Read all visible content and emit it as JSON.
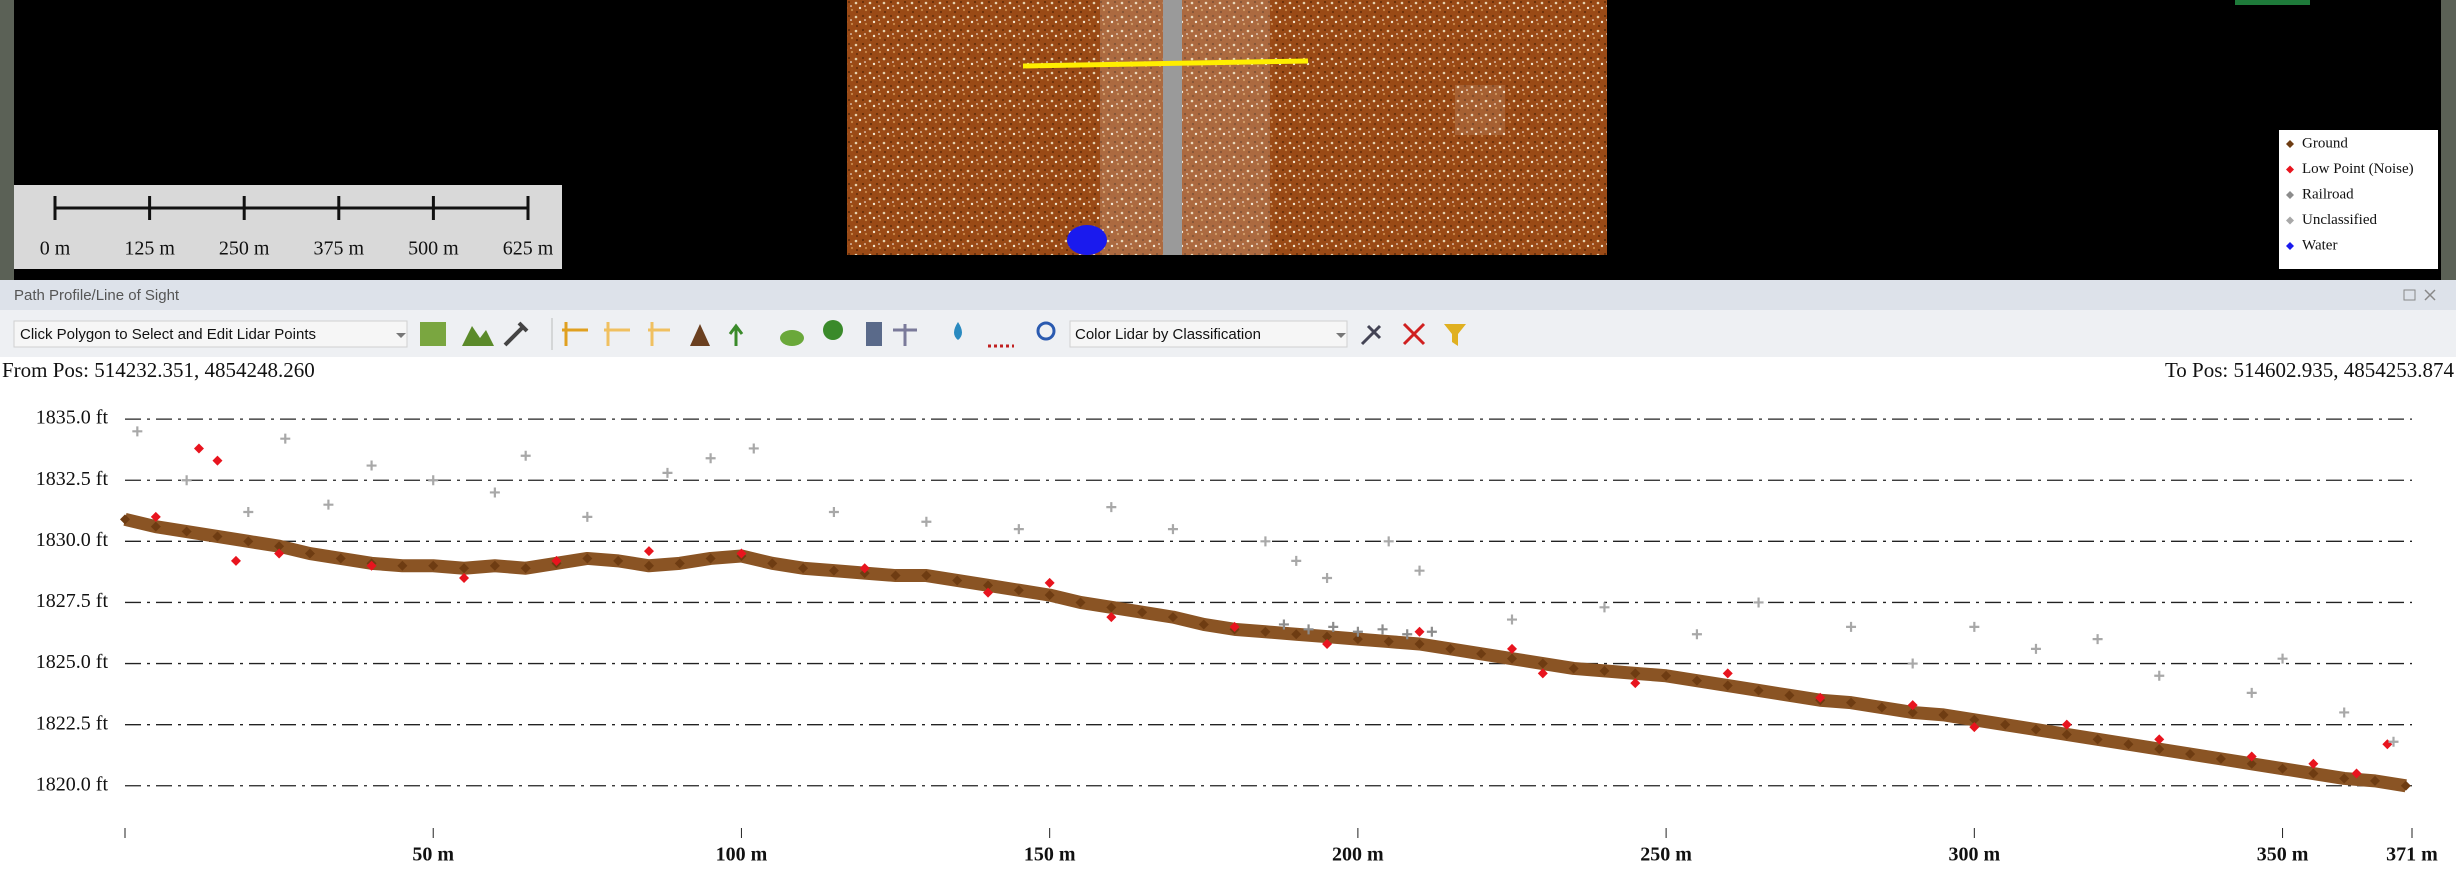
{
  "map": {
    "scale_labels": [
      "0 m",
      "125 m",
      "250 m",
      "375 m",
      "500 m",
      "625 m"
    ]
  },
  "panel": {
    "title": "Path Profile/Line of Sight",
    "tool_select": "Click Polygon to Select and Edit Lidar Points",
    "color_mode": "Color Lidar by Classification"
  },
  "chart_data": {
    "type": "scatter",
    "from_pos": "From Pos: 514232.351, 4854248.260",
    "to_pos": "To Pos: 514602.935, 4854253.874",
    "xlim": [
      0,
      371
    ],
    "ylim": [
      1818.6,
      1836.6
    ],
    "grid": true,
    "yticks": [
      {
        "value": 1820,
        "label": "1820.0 ft"
      },
      {
        "value": 1822.5,
        "label": "1822.5 ft"
      },
      {
        "value": 1825,
        "label": "1825.0 ft"
      },
      {
        "value": 1827.5,
        "label": "1827.5 ft"
      },
      {
        "value": 1830,
        "label": "1830.0 ft"
      },
      {
        "value": 1832.5,
        "label": "1832.5 ft"
      },
      {
        "value": 1835,
        "label": "1835.0 ft"
      }
    ],
    "xticks": [
      {
        "value": 50,
        "label": "50 m"
      },
      {
        "value": 100,
        "label": "100 m"
      },
      {
        "value": 150,
        "label": "150 m"
      },
      {
        "value": 200,
        "label": "200 m"
      },
      {
        "value": 250,
        "label": "250 m"
      },
      {
        "value": 300,
        "label": "300 m"
      },
      {
        "value": 350,
        "label": "350 m"
      },
      {
        "value": 371,
        "label": "371 m"
      }
    ],
    "series": [
      {
        "name": "Ground",
        "color": "#6e3c12",
        "marker": "diamond",
        "x": [
          0,
          5,
          10,
          15,
          20,
          25,
          30,
          35,
          40,
          45,
          50,
          55,
          60,
          65,
          70,
          75,
          80,
          85,
          90,
          95,
          100,
          105,
          110,
          115,
          120,
          125,
          130,
          135,
          140,
          145,
          150,
          155,
          160,
          165,
          170,
          175,
          180,
          185,
          190,
          195,
          200,
          205,
          210,
          215,
          220,
          225,
          230,
          235,
          240,
          245,
          250,
          255,
          260,
          265,
          270,
          275,
          280,
          285,
          290,
          295,
          300,
          305,
          310,
          315,
          320,
          325,
          330,
          335,
          340,
          345,
          350,
          355,
          360,
          365,
          370
        ],
        "values": [
          1830.9,
          1830.6,
          1830.4,
          1830.2,
          1830.0,
          1829.8,
          1829.5,
          1829.3,
          1829.1,
          1829.0,
          1829.0,
          1828.9,
          1829.0,
          1828.9,
          1829.1,
          1829.3,
          1829.2,
          1829.0,
          1829.1,
          1829.3,
          1829.4,
          1829.1,
          1828.9,
          1828.8,
          1828.7,
          1828.6,
          1828.6,
          1828.4,
          1828.2,
          1828.0,
          1827.8,
          1827.5,
          1827.3,
          1827.1,
          1826.9,
          1826.6,
          1826.4,
          1826.3,
          1826.2,
          1826.1,
          1826.0,
          1825.9,
          1825.8,
          1825.6,
          1825.4,
          1825.2,
          1825.0,
          1824.8,
          1824.7,
          1824.6,
          1824.5,
          1824.3,
          1824.1,
          1823.9,
          1823.7,
          1823.5,
          1823.4,
          1823.2,
          1823.0,
          1822.9,
          1822.7,
          1822.5,
          1822.3,
          1822.1,
          1821.9,
          1821.7,
          1821.5,
          1821.3,
          1821.1,
          1820.9,
          1820.7,
          1820.5,
          1820.3,
          1820.2,
          1820.0
        ]
      },
      {
        "name": "Low Point (Noise)",
        "color": "#e8141e",
        "marker": "diamond",
        "x": [
          5,
          12,
          15,
          18,
          25,
          40,
          55,
          70,
          85,
          100,
          120,
          140,
          150,
          160,
          180,
          195,
          210,
          225,
          230,
          245,
          260,
          275,
          290,
          300,
          315,
          330,
          345,
          355,
          362,
          367
        ],
        "values": [
          1831.0,
          1833.8,
          1833.3,
          1829.2,
          1829.5,
          1829.0,
          1828.5,
          1829.2,
          1829.6,
          1829.5,
          1828.9,
          1827.9,
          1828.3,
          1826.9,
          1826.5,
          1825.8,
          1826.3,
          1825.6,
          1824.6,
          1824.2,
          1824.6,
          1823.6,
          1823.3,
          1822.4,
          1822.5,
          1821.9,
          1821.2,
          1820.9,
          1820.5,
          1821.7
        ]
      },
      {
        "name": "Railroad",
        "color": "#8c8c8c",
        "marker": "plus",
        "x": [
          188,
          192,
          196,
          200,
          204,
          208,
          212
        ],
        "values": [
          1826.6,
          1826.4,
          1826.5,
          1826.3,
          1826.4,
          1826.2,
          1826.3
        ]
      },
      {
        "name": "Unclassified",
        "color": "#a8a8a8",
        "marker": "plus",
        "x": [
          2,
          10,
          20,
          26,
          33,
          40,
          50,
          60,
          65,
          75,
          88,
          95,
          102,
          115,
          130,
          145,
          160,
          170,
          185,
          190,
          195,
          205,
          210,
          225,
          240,
          255,
          265,
          280,
          290,
          300,
          310,
          320,
          330,
          345,
          350,
          360,
          368
        ],
        "values": [
          1834.5,
          1832.5,
          1831.2,
          1834.2,
          1831.5,
          1833.1,
          1832.5,
          1832.0,
          1833.5,
          1831.0,
          1832.8,
          1833.4,
          1833.8,
          1831.2,
          1830.8,
          1830.5,
          1831.4,
          1830.5,
          1830.0,
          1829.2,
          1828.5,
          1830.0,
          1828.8,
          1826.8,
          1827.3,
          1826.2,
          1827.5,
          1826.5,
          1825.0,
          1826.5,
          1825.6,
          1826.0,
          1824.5,
          1823.8,
          1825.2,
          1823.0,
          1821.8
        ]
      },
      {
        "name": "Water",
        "color": "#1a1aee",
        "marker": "diamond",
        "x": [],
        "values": []
      }
    ]
  }
}
